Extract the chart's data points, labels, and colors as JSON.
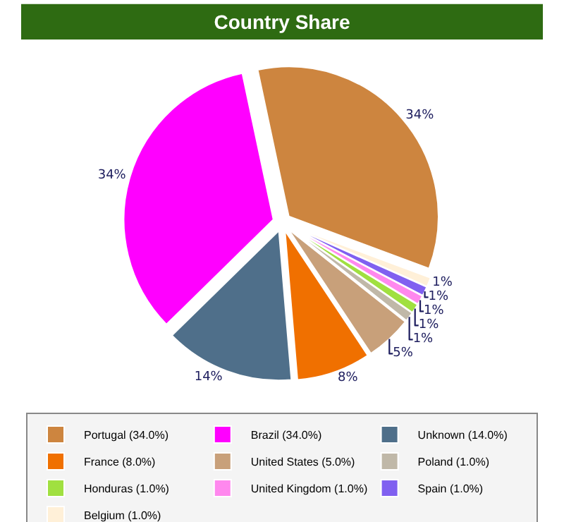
{
  "chart_data": {
    "type": "pie",
    "title": "Country Share",
    "categories": [
      "Portugal (34.0%)",
      "Brazil (34.0%)",
      "Unknown (14.0%)",
      "France (8.0%)",
      "United States (5.0%)",
      "Poland (1.0%)",
      "Honduras (1.0%)",
      "United Kingdom (1.0%)",
      "Spain (1.0%)",
      "Belgium (1.0%)"
    ],
    "values": [
      34,
      34,
      14,
      8,
      5,
      1,
      1,
      1,
      1,
      1
    ],
    "value_labels": [
      "34%",
      "34%",
      "14%",
      "8%",
      "5%",
      "1%",
      "1%",
      "1%",
      "1%",
      "1%"
    ],
    "colors": [
      "#cd853f",
      "#ff00ff",
      "#4f6f8a",
      "#f07000",
      "#c8a07a",
      "#c0b8a8",
      "#a0e040",
      "#ff88ee",
      "#8060f0",
      "#fff0d8"
    ],
    "legend": "bottom"
  }
}
